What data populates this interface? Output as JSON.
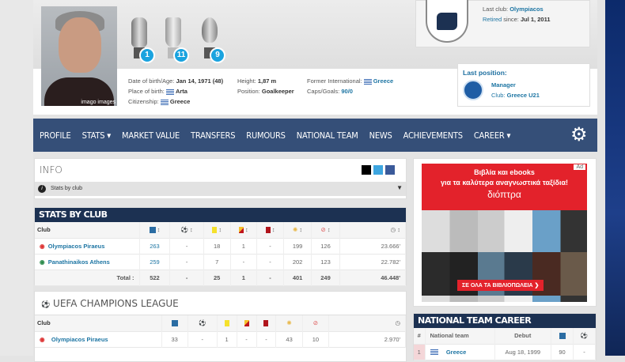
{
  "header": {
    "photo_credit": "imago images",
    "trophies": [
      {
        "icon": "european-championship-trophy-icon",
        "count": "1"
      },
      {
        "icon": "league-trophy-icon",
        "count": "11"
      },
      {
        "icon": "cup-trophy-icon",
        "count": "9"
      }
    ],
    "info": {
      "dob_label": "Date of birth/Age:",
      "dob": "Jan 14, 1971 (48)",
      "pob_label": "Place of birth:",
      "pob": "Arta",
      "citizenship_label": "Citizenship:",
      "citizenship": "Greece",
      "height_label": "Height:",
      "height": "1,87 m",
      "position_label": "Position:",
      "position": "Goalkeeper",
      "intl_label": "Former International:",
      "intl": "Greece",
      "caps_label": "Caps/Goals:",
      "caps": "90/0"
    },
    "retired": {
      "last_club_label": "Last club:",
      "last_club": "Olympiacos",
      "retired_label": "Retired",
      "since_label": "since:",
      "since": "Jul 1, 2011"
    },
    "last_position": {
      "title": "Last position:",
      "role": "Manager",
      "club_label": "Club:",
      "club": "Greece U21"
    }
  },
  "nav": {
    "items": [
      "PROFILE",
      "STATS ▾",
      "MARKET VALUE",
      "TRANSFERS",
      "RUMOURS",
      "NATIONAL TEAM",
      "NEWS",
      "ACHIEVEMENTS",
      "CAREER ▾"
    ]
  },
  "info_box": {
    "title": "INFO",
    "dropdown": "Stats by club"
  },
  "stats_by_club": {
    "title": "STATS BY CLUB",
    "club_header": "Club",
    "rows": [
      {
        "club": "Olympiacos Piraeus",
        "vals": [
          "263",
          "-",
          "18",
          "1",
          "-",
          "199",
          "126",
          "23.666'"
        ]
      },
      {
        "club": "Panathinaikos Athens",
        "vals": [
          "259",
          "-",
          "7",
          "-",
          "-",
          "202",
          "123",
          "22.782'"
        ]
      }
    ],
    "total_label": "Total :",
    "totals": [
      "522",
      "-",
      "25",
      "1",
      "-",
      "401",
      "249",
      "46.448'"
    ]
  },
  "ucl": {
    "title": "UEFA CHAMPIONS LEAGUE",
    "club_header": "Club",
    "rows": [
      {
        "club": "Olympiacos Piraeus",
        "vals": [
          "33",
          "-",
          "1",
          "-",
          "-",
          "43",
          "10",
          "2.970'"
        ]
      }
    ]
  },
  "ad": {
    "badge": "Ad",
    "line1": "Βιβλία και ebooks",
    "line2": "για τα καλύτερα αναγνωστικά ταξίδια!",
    "brand": "διόπτρα",
    "cta": "ΣΕ ΟΛΑ ΤΑ ΒΙΒΛΙΟΠΩΛΕΙΑ ❯",
    "colors": {
      "red": "#e3222b"
    }
  },
  "national_career": {
    "title": "NATIONAL TEAM CAREER",
    "headers": [
      "#",
      "National team",
      "Debut"
    ],
    "rows": [
      {
        "num": "1",
        "team": "Greece",
        "debut": "Aug 18, 1999",
        "apps": "90",
        "goals": "-"
      }
    ]
  },
  "colors": {
    "nav": "#354f78",
    "navy": "#1c3152",
    "link": "#1d75a3",
    "badge": "#1aa3df"
  }
}
